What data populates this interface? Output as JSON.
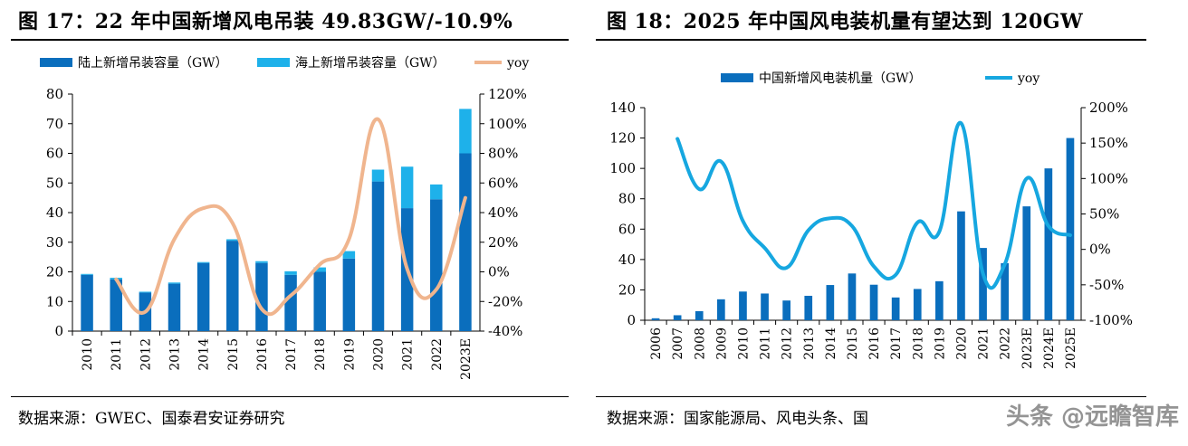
{
  "left": {
    "title": "图 17：22 年中国新增风电吊装 49.83GW/-10.9%",
    "source": "数据来源：GWEC、国泰君安证券研究"
  },
  "right": {
    "title": "图 18：2025 年中国风电装机量有望达到 120GW",
    "source": "数据来源：国家能源局、风电头条、国"
  },
  "watermark": "头条 @远瞻智库",
  "colors": {
    "bar_dark": "#0a6ebd",
    "bar_light": "#1eb1ea",
    "line_orange": "#f0b58e",
    "line_blue": "#16a7e0"
  },
  "chart_data": [
    {
      "type": "bar",
      "stacked": true,
      "categories": [
        "2010",
        "2011",
        "2012",
        "2013",
        "2014",
        "2015",
        "2016",
        "2017",
        "2018",
        "2019",
        "2020",
        "2021",
        "2022",
        "2023E"
      ],
      "series": [
        {
          "name": "陆上新增吊装容量（GW）",
          "values": [
            19,
            17.5,
            13,
            16,
            23,
            30.5,
            23,
            19,
            20,
            24.5,
            50.5,
            41.5,
            44.5,
            60
          ],
          "color": "#0a6ebd"
        },
        {
          "name": "海上新增吊装容量（GW）",
          "values": [
            0.3,
            0.5,
            0.3,
            0.4,
            0.3,
            0.5,
            0.6,
            1.2,
            1.5,
            2.5,
            4,
            14,
            5,
            15
          ],
          "color": "#1eb1ea"
        },
        {
          "name": "yoy",
          "axis": "right",
          "type": "line",
          "smooth": true,
          "values": [
            null,
            -5,
            -27,
            22,
            43,
            33,
            -25,
            -16,
            5,
            22,
            103,
            2,
            -12,
            50
          ],
          "color": "#f0b58e"
        }
      ],
      "ylim": [
        0,
        80
      ],
      "yticks": [
        "0",
        "10",
        "20",
        "30",
        "40",
        "50",
        "60",
        "70",
        "80"
      ],
      "y2lim": [
        -40,
        120
      ],
      "y2ticks": [
        "-40%",
        "-20%",
        "0%",
        "20%",
        "40%",
        "60%",
        "80%",
        "100%",
        "120%"
      ],
      "legend": "top"
    },
    {
      "type": "bar",
      "categories": [
        "2006",
        "2007",
        "2008",
        "2009",
        "2010",
        "2011",
        "2012",
        "2013",
        "2014",
        "2015",
        "2016",
        "2017",
        "2018",
        "2019",
        "2020",
        "2021",
        "2022",
        "2023E",
        "2024E",
        "2025E"
      ],
      "series": [
        {
          "name": "中国新增风电装机量（GW）",
          "values": [
            1.3,
            3.3,
            6,
            13.8,
            18.9,
            17.6,
            13,
            16.1,
            23.2,
            30.8,
            23.4,
            15,
            20.6,
            25.7,
            71.7,
            47.6,
            37.6,
            75,
            100,
            120
          ],
          "color": "#0a6ebd"
        },
        {
          "name": "yoy",
          "axis": "right",
          "type": "line",
          "smooth": true,
          "values": [
            null,
            156,
            85,
            124,
            40,
            2,
            -26,
            27,
            44,
            33,
            -24,
            -36,
            38,
            25,
            178,
            -34,
            -21,
            100,
            33,
            20
          ],
          "color": "#16a7e0"
        }
      ],
      "ylim": [
        0,
        140
      ],
      "yticks": [
        "0",
        "20",
        "40",
        "60",
        "80",
        "100",
        "120",
        "140"
      ],
      "y2lim": [
        -100,
        200
      ],
      "y2ticks": [
        "-100%",
        "-50%",
        "0%",
        "50%",
        "100%",
        "150%",
        "200%"
      ],
      "legend": "top"
    }
  ]
}
